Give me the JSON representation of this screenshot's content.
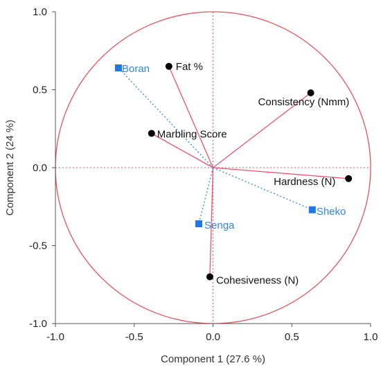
{
  "chart_data": {
    "type": "scatter",
    "title": "",
    "xlabel": "Component 1  (27.6 %)",
    "ylabel": "Component 2  (24 %)",
    "xlim": [
      -1.0,
      1.0
    ],
    "ylim": [
      -1.0,
      1.0
    ],
    "xticks": [
      "-1.0",
      "-0.5",
      "0.0",
      "0.5",
      "1.0"
    ],
    "yticks": [
      "1.0",
      "0.5",
      "0.0",
      "-0.5",
      "-1.0"
    ],
    "xtick_values": [
      -1.0,
      -0.5,
      0.0,
      0.5,
      1.0
    ],
    "ytick_values": [
      1.0,
      0.5,
      0.0,
      -0.5,
      -1.0
    ],
    "unit_circle": true,
    "reference_lines": [
      0,
      0
    ],
    "series": [
      {
        "name": "",
        "marker": "circle",
        "color": "#000000",
        "vector_color": "#f0506e",
        "points": [
          {
            "label": "Fat %",
            "x": -0.28,
            "y": 0.65
          },
          {
            "label": "Consistency (Nmm)",
            "x": 0.62,
            "y": 0.48
          },
          {
            "label": "Marbling Score",
            "x": -0.39,
            "y": 0.22
          },
          {
            "label": "Hardness (N)",
            "x": 0.86,
            "y": -0.07
          },
          {
            "label": "Cohesiveness (N)",
            "x": -0.02,
            "y": -0.7
          }
        ]
      },
      {
        "name": "",
        "marker": "square",
        "color": "#1e78e6",
        "vector_color": "#3c8ce6",
        "points": [
          {
            "label": "Boran",
            "x": -0.6,
            "y": 0.64
          },
          {
            "label": "Sheko",
            "x": 0.63,
            "y": -0.27
          },
          {
            "label": "Senga",
            "x": -0.09,
            "y": -0.36
          }
        ]
      }
    ]
  },
  "colors": {
    "circle": "#e8505b",
    "reference": "#e8505b",
    "variable_vector": "#f0506e",
    "group_vector": "#3c8ce6",
    "group_point": "#1e78e6",
    "group_text": "#2f86e8",
    "variable_point": "#000000"
  }
}
